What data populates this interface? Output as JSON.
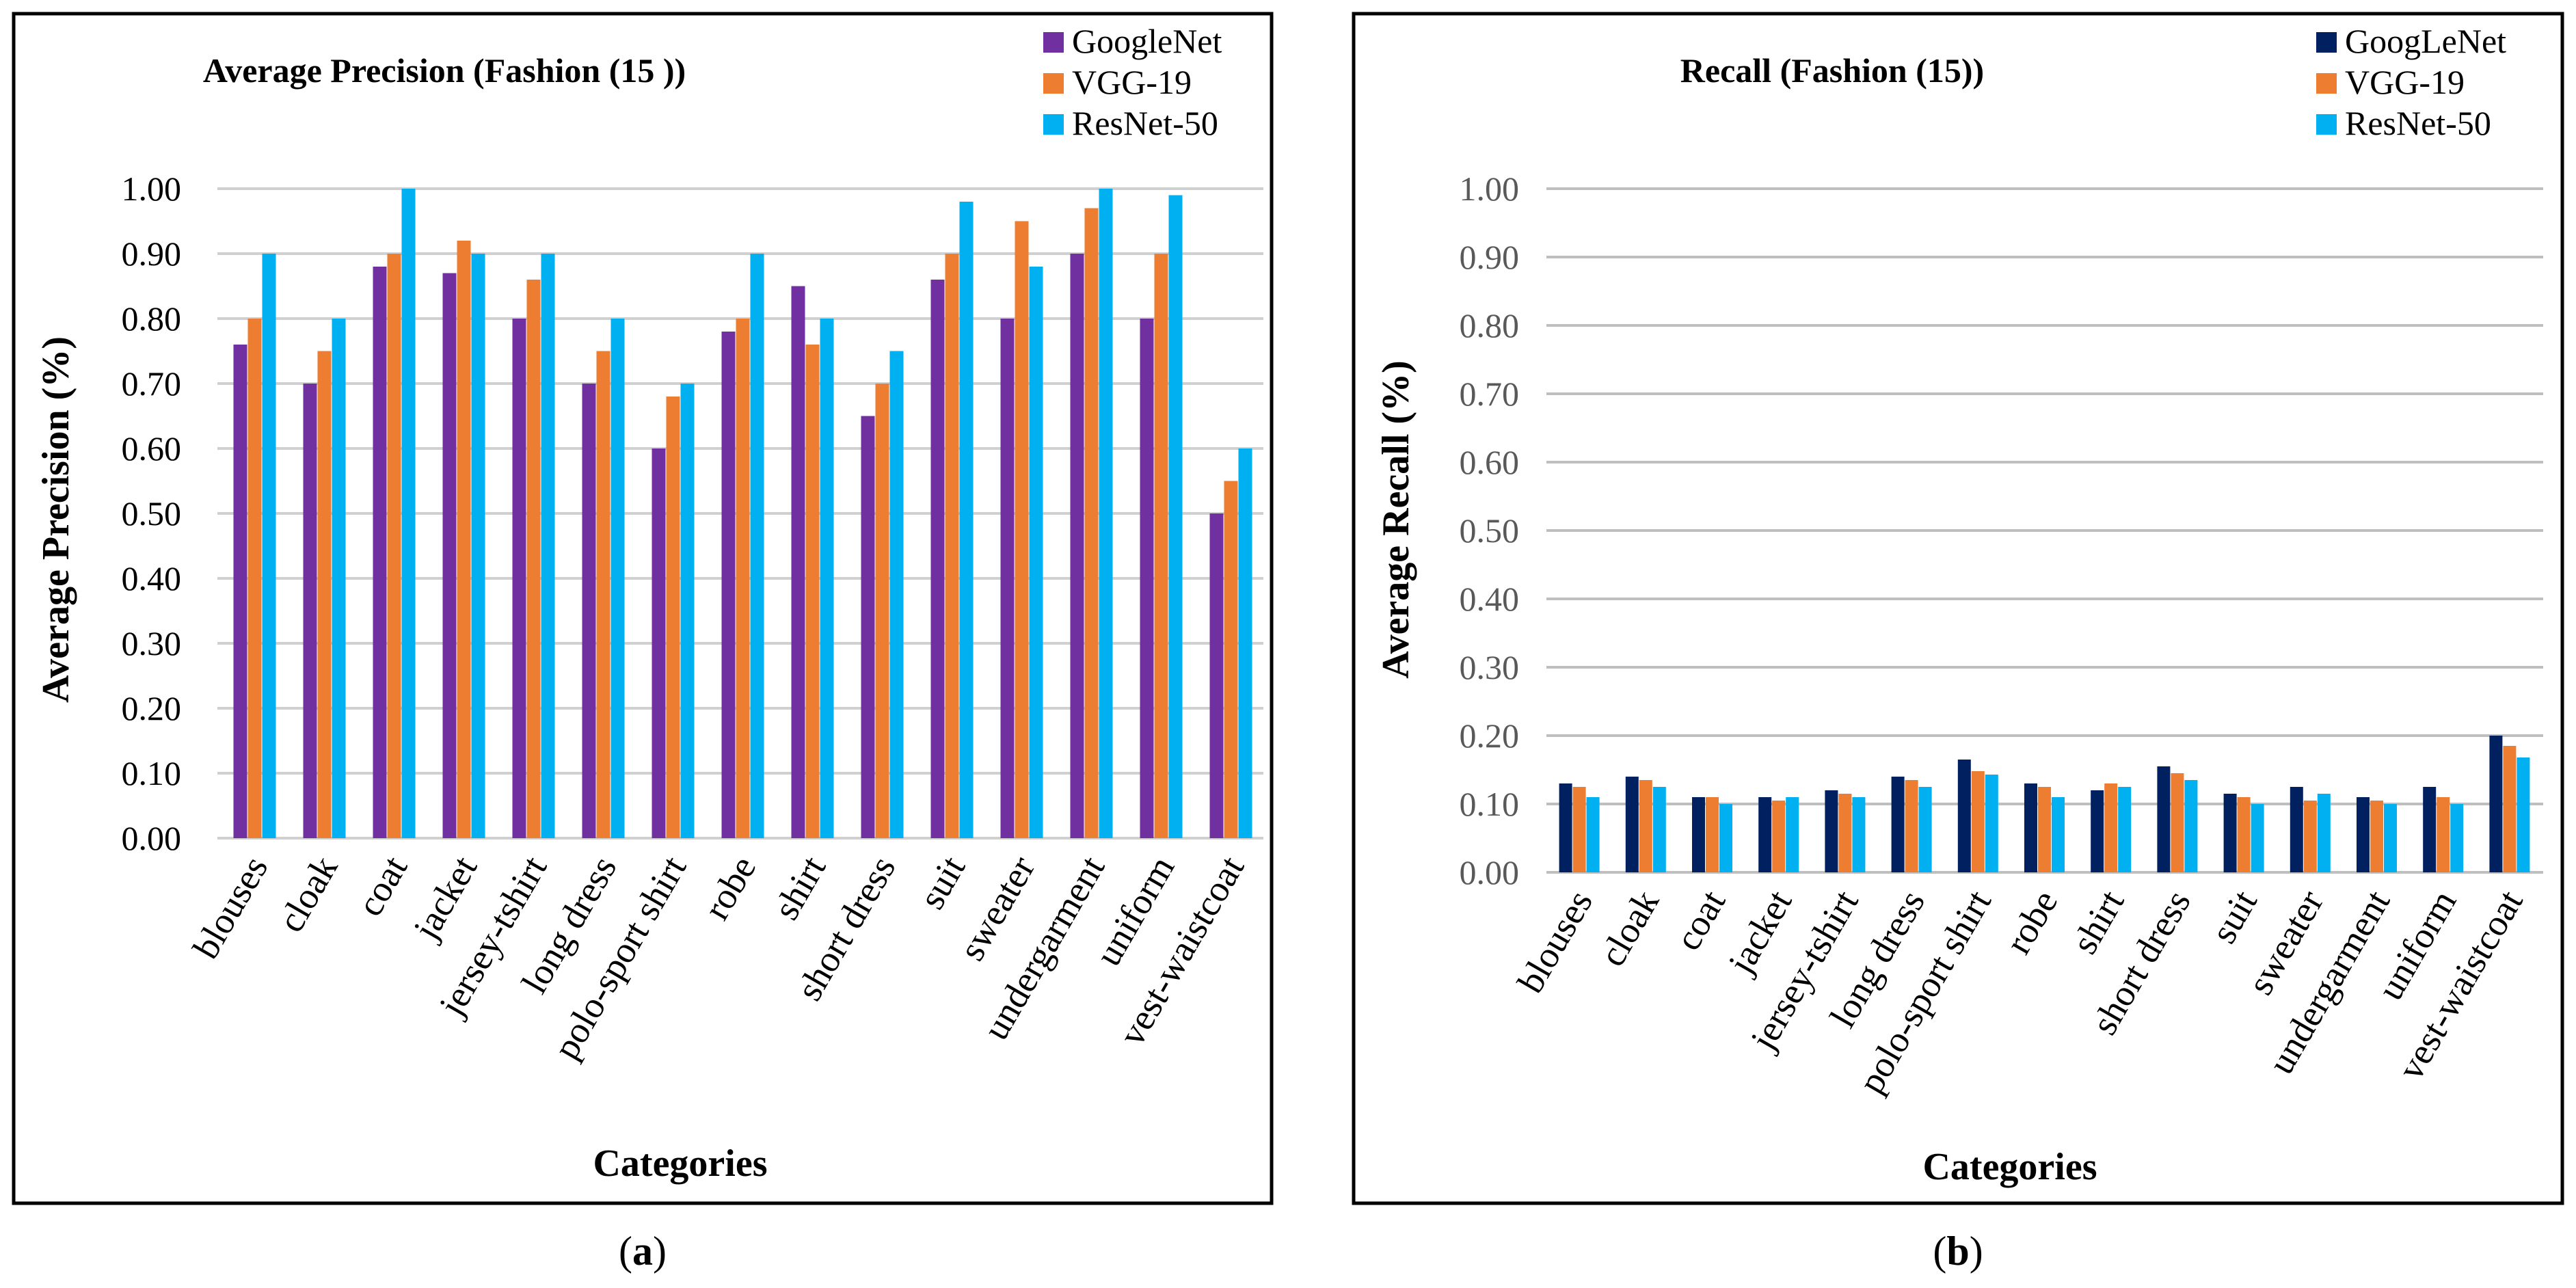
{
  "chart_data": [
    {
      "type": "bar",
      "panel_label": "a",
      "title": "Average Precision (Fashion (15 ))",
      "xlabel": "Categories",
      "ylabel": "Average Precision (%)",
      "ylim": [
        0,
        1
      ],
      "ytick_step": 0.1,
      "grid": true,
      "legend_position": "top-right",
      "categories": [
        "blouses",
        "cloak",
        "coat",
        "jacket",
        "jersey-tshirt",
        "long dress",
        "polo-sport shirt",
        "robe",
        "shirt",
        "short dress",
        "suit",
        "sweater",
        "undergarment",
        "uniform",
        "vest-waistcoat"
      ],
      "series": [
        {
          "name": "GoogleNet",
          "color": "#7030A0",
          "values": [
            0.76,
            0.7,
            0.88,
            0.87,
            0.8,
            0.7,
            0.6,
            0.78,
            0.85,
            0.65,
            0.86,
            0.8,
            0.9,
            0.8,
            0.5
          ]
        },
        {
          "name": "VGG-19",
          "color": "#ED7D31",
          "values": [
            0.8,
            0.75,
            0.9,
            0.92,
            0.86,
            0.75,
            0.68,
            0.8,
            0.76,
            0.7,
            0.9,
            0.95,
            0.97,
            0.9,
            0.55
          ]
        },
        {
          "name": "ResNet-50",
          "color": "#00B0F0",
          "values": [
            0.9,
            0.8,
            1.0,
            0.9,
            0.9,
            0.8,
            0.7,
            0.9,
            0.8,
            0.75,
            0.98,
            0.88,
            1.0,
            0.99,
            0.6
          ]
        }
      ]
    },
    {
      "type": "bar",
      "panel_label": "b",
      "title": "Recall (Fashion (15))",
      "xlabel": "Categories",
      "ylabel": "Average Recall (%)",
      "ylim": [
        0,
        1
      ],
      "ytick_step": 0.1,
      "grid": true,
      "legend_position": "top-right",
      "categories": [
        "blouses",
        "cloak",
        "coat",
        "jacket",
        "jersey-tshirt",
        "long dress",
        "polo-sport shirt",
        "robe",
        "shirt",
        "short dress",
        "suit",
        "sweater",
        "undergarment",
        "uniform",
        "vest-waistcoat"
      ],
      "series": [
        {
          "name": "GoogLeNet",
          "color": "#002060",
          "values": [
            0.13,
            0.14,
            0.11,
            0.11,
            0.12,
            0.14,
            0.165,
            0.13,
            0.12,
            0.155,
            0.115,
            0.125,
            0.11,
            0.125,
            0.2
          ]
        },
        {
          "name": "VGG-19",
          "color": "#ED7D31",
          "values": [
            0.125,
            0.135,
            0.11,
            0.105,
            0.115,
            0.135,
            0.148,
            0.125,
            0.13,
            0.145,
            0.11,
            0.105,
            0.105,
            0.11,
            0.185
          ]
        },
        {
          "name": "ResNet-50",
          "color": "#00B0F0",
          "values": [
            0.11,
            0.125,
            0.1,
            0.11,
            0.11,
            0.125,
            0.143,
            0.11,
            0.125,
            0.135,
            0.1,
            0.115,
            0.1,
            0.1,
            0.168
          ]
        }
      ]
    }
  ]
}
